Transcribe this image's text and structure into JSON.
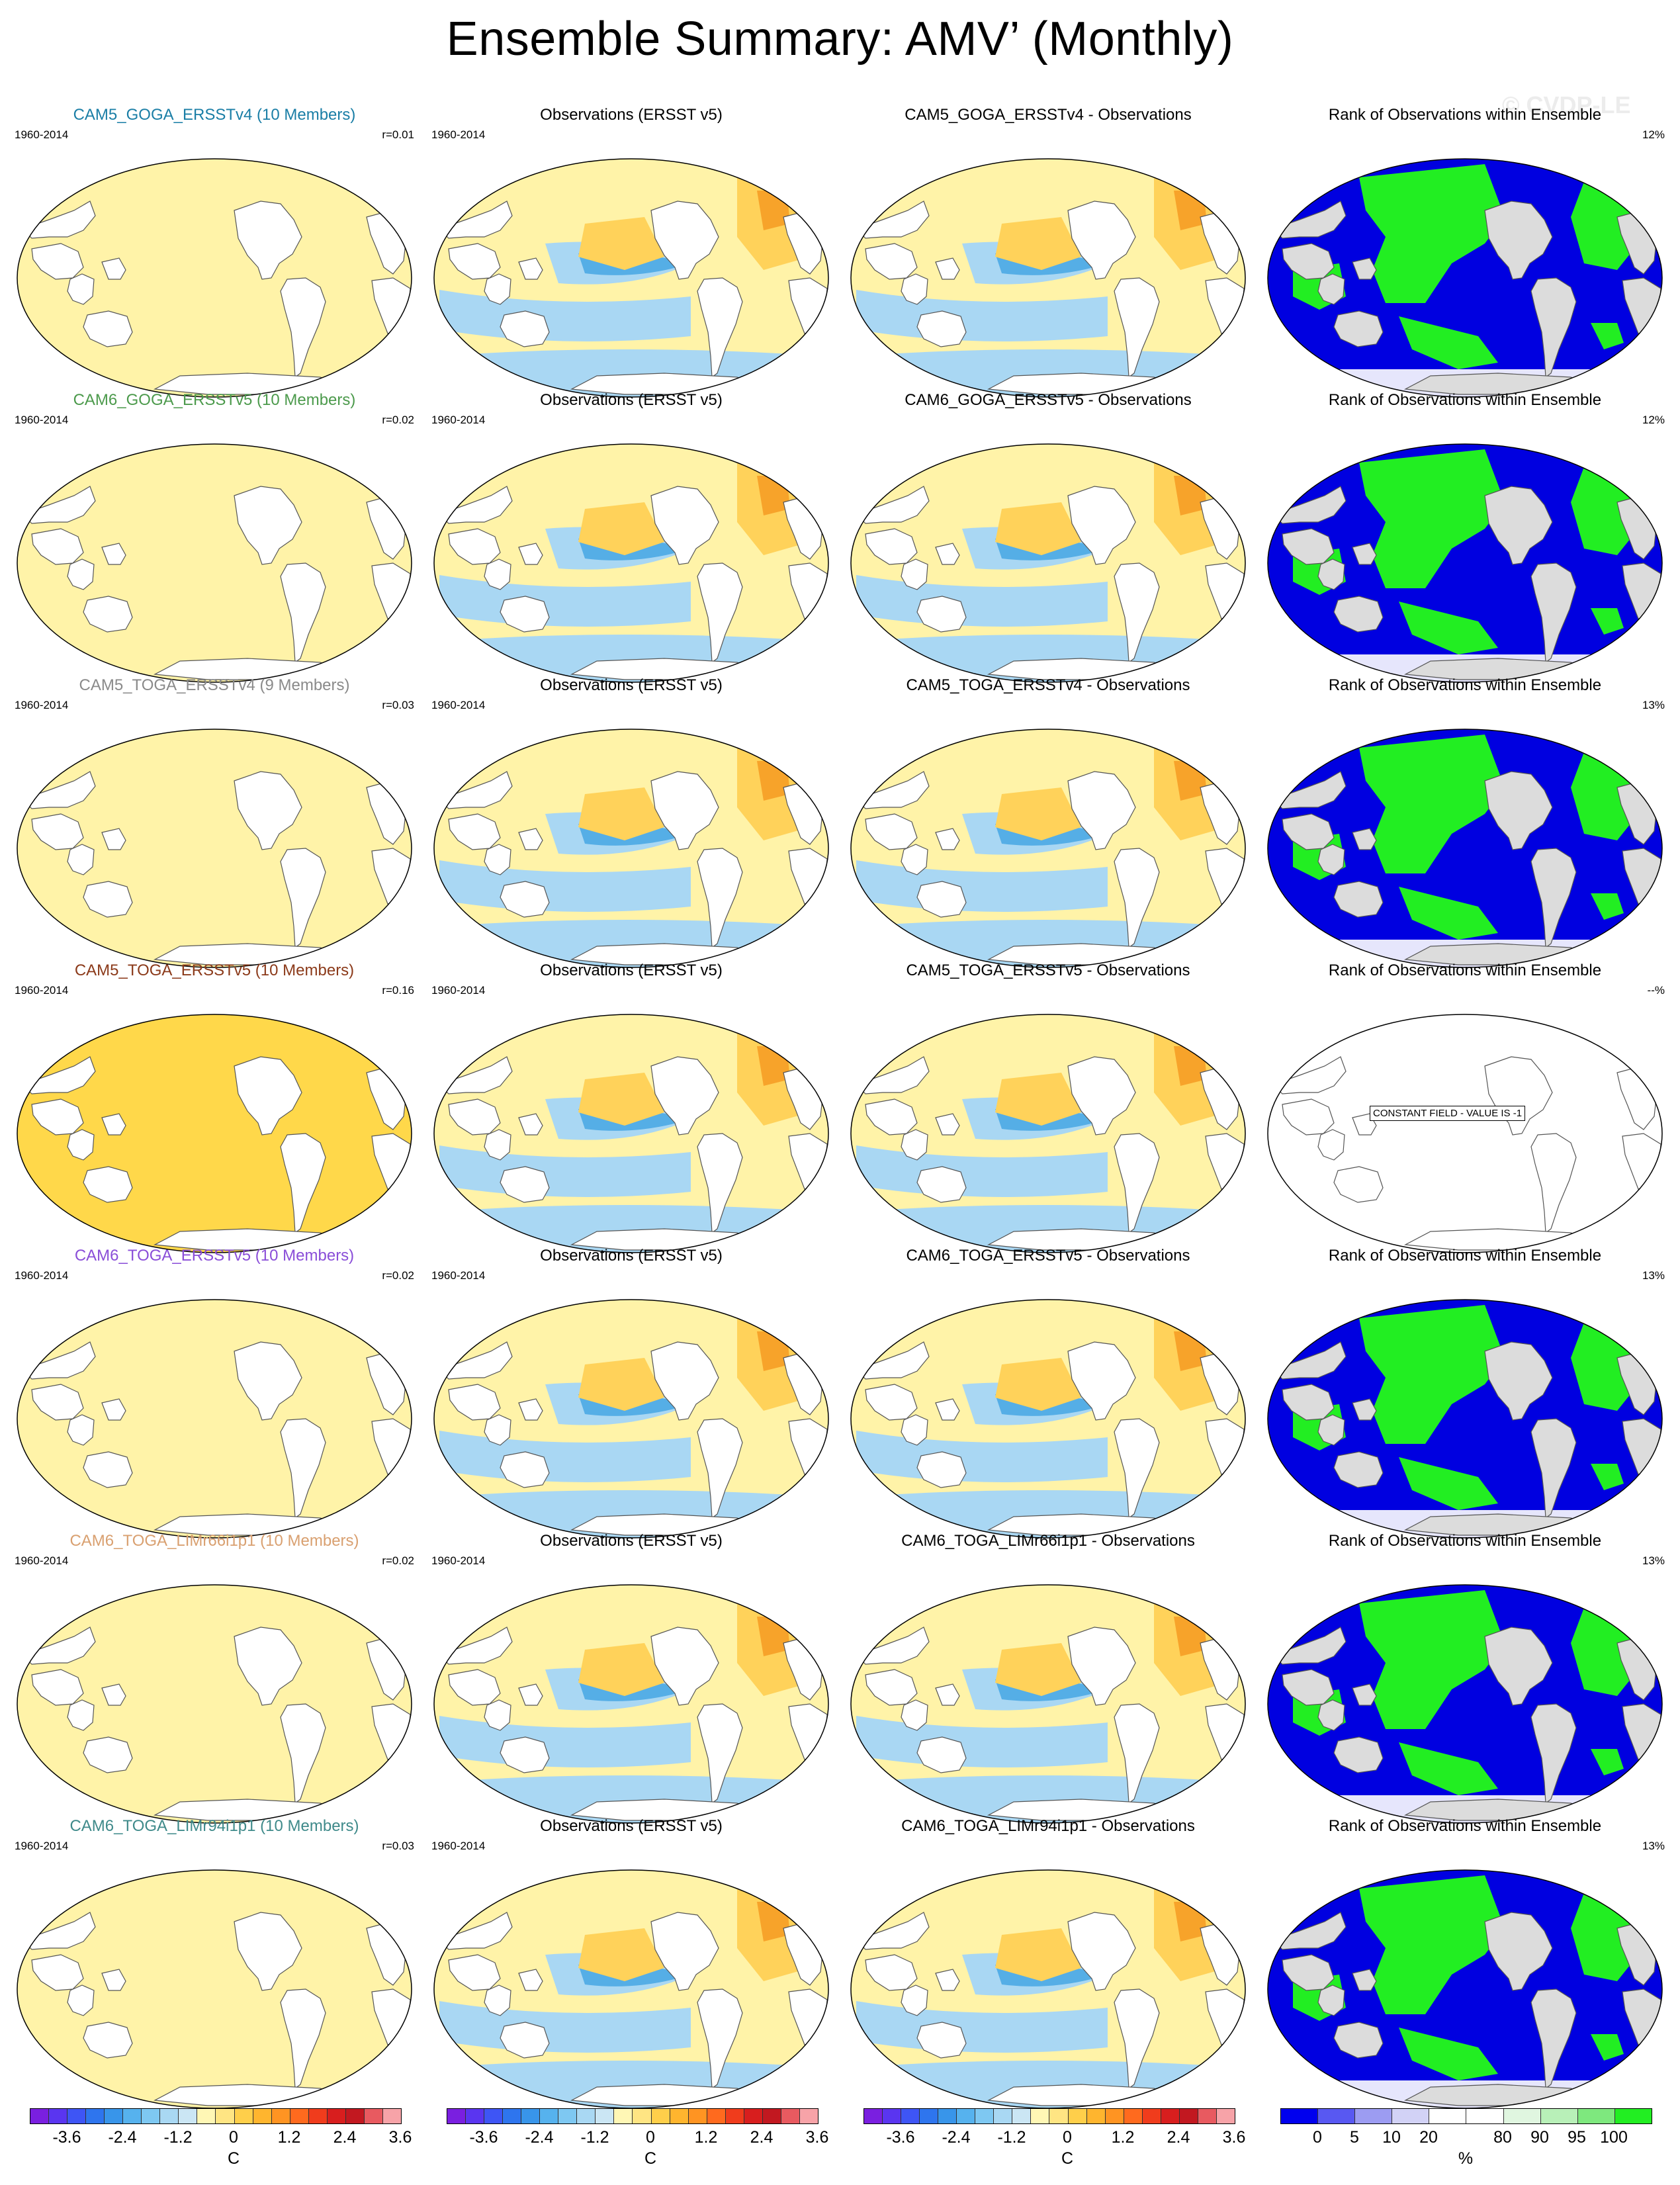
{
  "page": {
    "title": "Ensemble Summary: AMV’ (Monthly)",
    "watermark": "© CVDP-LE"
  },
  "colors": {
    "land": "#ffffff",
    "land_rank": "#dcdcdc",
    "ocean_base": "#fff3a8",
    "cold": "#a9d7f3",
    "cold2": "#55aee6",
    "warm": "#ffd25a",
    "warm2": "#f7a32a",
    "rank_low": "#0000e0",
    "rank_high": "#22ee22",
    "title_colors": [
      "#1a7ea6",
      "#4c9a4c",
      "#8a8a8a",
      "#8b3a1a",
      "#8a4ed8",
      "#d9a070",
      "#3f8a8a"
    ]
  },
  "rows": [
    {
      "model": {
        "title": "CAM5_GOGA_ERSSTv4 (10 Members)",
        "period": "1960-2014",
        "r": "r=0.01"
      },
      "obs": {
        "title": "Observations (ERSST v5)",
        "period": "1960-2014"
      },
      "diff": {
        "title": "CAM5_GOGA_ERSSTv4 - Observations"
      },
      "rank": {
        "title": "Rank of Observations within Ensemble",
        "pct": "12%"
      }
    },
    {
      "model": {
        "title": "CAM6_GOGA_ERSSTv5 (10 Members)",
        "period": "1960-2014",
        "r": "r=0.02"
      },
      "obs": {
        "title": "Observations (ERSST v5)",
        "period": "1960-2014"
      },
      "diff": {
        "title": "CAM6_GOGA_ERSSTv5 - Observations"
      },
      "rank": {
        "title": "Rank of Observations within Ensemble",
        "pct": "12%"
      }
    },
    {
      "model": {
        "title": "CAM5_TOGA_ERSSTv4 (9 Members)",
        "period": "1960-2014",
        "r": "r=0.03"
      },
      "obs": {
        "title": "Observations (ERSST v5)",
        "period": "1960-2014"
      },
      "diff": {
        "title": "CAM5_TOGA_ERSSTv4 - Observations"
      },
      "rank": {
        "title": "Rank of Observations within Ensemble",
        "pct": "13%"
      }
    },
    {
      "model": {
        "title": "CAM5_TOGA_ERSSTv5 (10 Members)",
        "period": "1960-2014",
        "r": "r=0.16"
      },
      "obs": {
        "title": "Observations (ERSST v5)",
        "period": "1960-2014"
      },
      "diff": {
        "title": "CAM5_TOGA_ERSSTv5 - Observations"
      },
      "rank": {
        "title": "Rank of Observations within Ensemble",
        "pct": "--%",
        "constant_field": "CONSTANT FIELD - VALUE IS -1"
      }
    },
    {
      "model": {
        "title": "CAM6_TOGA_ERSSTv5 (10 Members)",
        "period": "1960-2014",
        "r": "r=0.02"
      },
      "obs": {
        "title": "Observations (ERSST v5)",
        "period": "1960-2014"
      },
      "diff": {
        "title": "CAM6_TOGA_ERSSTv5 - Observations"
      },
      "rank": {
        "title": "Rank of Observations within Ensemble",
        "pct": "13%"
      }
    },
    {
      "model": {
        "title": "CAM6_TOGA_LIMr66i1p1 (10 Members)",
        "period": "1960-2014",
        "r": "r=0.02"
      },
      "obs": {
        "title": "Observations (ERSST v5)",
        "period": "1960-2014"
      },
      "diff": {
        "title": "CAM6_TOGA_LIMr66i1p1 - Observations"
      },
      "rank": {
        "title": "Rank of Observations within Ensemble",
        "pct": "13%"
      }
    },
    {
      "model": {
        "title": "CAM6_TOGA_LIMr94i1p1 (10 Members)",
        "period": "1960-2014",
        "r": "r=0.03"
      },
      "obs": {
        "title": "Observations (ERSST v5)",
        "period": "1960-2014"
      },
      "diff": {
        "title": "CAM6_TOGA_LIMr94i1p1 - Observations"
      },
      "rank": {
        "title": "Rank of Observations within Ensemble",
        "pct": "13%"
      }
    }
  ],
  "colorbars": {
    "temperature": {
      "labels": [
        "-3.6",
        "-2.4",
        "-1.2",
        "0",
        "1.2",
        "2.4",
        "3.6"
      ],
      "unit": "C",
      "colors": [
        "#7a1fe0",
        "#5a35f0",
        "#3e55f5",
        "#2e75ee",
        "#3895ea",
        "#56b2ee",
        "#7ec8f2",
        "#a9d8f3",
        "#cbe6f4",
        "#fff7b5",
        "#ffe583",
        "#ffcf4a",
        "#ffb52e",
        "#ff9422",
        "#ff6a1e",
        "#f03c1c",
        "#d81e1e",
        "#c21820",
        "#e85a60",
        "#f7a3a8"
      ]
    },
    "rank": {
      "labels": [
        "0",
        "5",
        "10",
        "20",
        "80",
        "90",
        "95",
        "100"
      ],
      "unit": "%",
      "colors": [
        "#0000ee",
        "#5858f2",
        "#9c9cf2",
        "#d2d2f6",
        "#ffffff",
        "#ffffff",
        "#e0f6e0",
        "#b8f0b8",
        "#7ee87e",
        "#22ee22"
      ]
    }
  }
}
